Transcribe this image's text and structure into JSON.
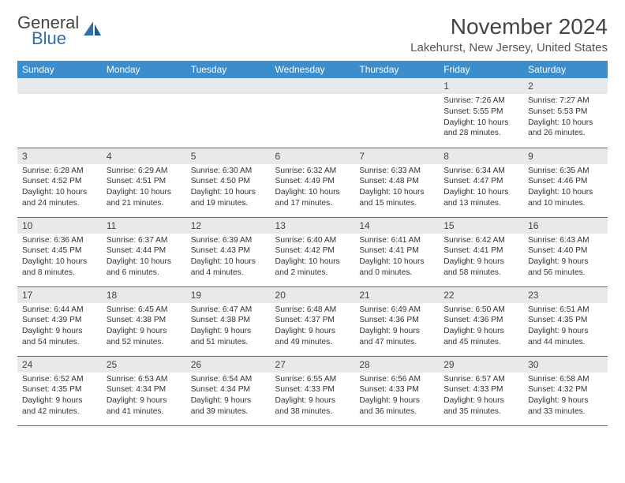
{
  "brand": {
    "word1": "General",
    "word2": "Blue",
    "word1_color": "#444444",
    "word2_color": "#2e6fb0"
  },
  "title": "November 2024",
  "location": "Lakehurst, New Jersey, United States",
  "header_bg": "#3b8dcb",
  "header_text_color": "#ffffff",
  "daynum_bg": "#e8e9ea",
  "border_color": "#3b6ea0",
  "background_color": "#ffffff",
  "day_names": [
    "Sunday",
    "Monday",
    "Tuesday",
    "Wednesday",
    "Thursday",
    "Friday",
    "Saturday"
  ],
  "weeks": [
    [
      null,
      null,
      null,
      null,
      null,
      {
        "n": "1",
        "sunrise": "7:26 AM",
        "sunset": "5:55 PM",
        "daylight": "10 hours and 28 minutes."
      },
      {
        "n": "2",
        "sunrise": "7:27 AM",
        "sunset": "5:53 PM",
        "daylight": "10 hours and 26 minutes."
      }
    ],
    [
      {
        "n": "3",
        "sunrise": "6:28 AM",
        "sunset": "4:52 PM",
        "daylight": "10 hours and 24 minutes."
      },
      {
        "n": "4",
        "sunrise": "6:29 AM",
        "sunset": "4:51 PM",
        "daylight": "10 hours and 21 minutes."
      },
      {
        "n": "5",
        "sunrise": "6:30 AM",
        "sunset": "4:50 PM",
        "daylight": "10 hours and 19 minutes."
      },
      {
        "n": "6",
        "sunrise": "6:32 AM",
        "sunset": "4:49 PM",
        "daylight": "10 hours and 17 minutes."
      },
      {
        "n": "7",
        "sunrise": "6:33 AM",
        "sunset": "4:48 PM",
        "daylight": "10 hours and 15 minutes."
      },
      {
        "n": "8",
        "sunrise": "6:34 AM",
        "sunset": "4:47 PM",
        "daylight": "10 hours and 13 minutes."
      },
      {
        "n": "9",
        "sunrise": "6:35 AM",
        "sunset": "4:46 PM",
        "daylight": "10 hours and 10 minutes."
      }
    ],
    [
      {
        "n": "10",
        "sunrise": "6:36 AM",
        "sunset": "4:45 PM",
        "daylight": "10 hours and 8 minutes."
      },
      {
        "n": "11",
        "sunrise": "6:37 AM",
        "sunset": "4:44 PM",
        "daylight": "10 hours and 6 minutes."
      },
      {
        "n": "12",
        "sunrise": "6:39 AM",
        "sunset": "4:43 PM",
        "daylight": "10 hours and 4 minutes."
      },
      {
        "n": "13",
        "sunrise": "6:40 AM",
        "sunset": "4:42 PM",
        "daylight": "10 hours and 2 minutes."
      },
      {
        "n": "14",
        "sunrise": "6:41 AM",
        "sunset": "4:41 PM",
        "daylight": "10 hours and 0 minutes."
      },
      {
        "n": "15",
        "sunrise": "6:42 AM",
        "sunset": "4:41 PM",
        "daylight": "9 hours and 58 minutes."
      },
      {
        "n": "16",
        "sunrise": "6:43 AM",
        "sunset": "4:40 PM",
        "daylight": "9 hours and 56 minutes."
      }
    ],
    [
      {
        "n": "17",
        "sunrise": "6:44 AM",
        "sunset": "4:39 PM",
        "daylight": "9 hours and 54 minutes."
      },
      {
        "n": "18",
        "sunrise": "6:45 AM",
        "sunset": "4:38 PM",
        "daylight": "9 hours and 52 minutes."
      },
      {
        "n": "19",
        "sunrise": "6:47 AM",
        "sunset": "4:38 PM",
        "daylight": "9 hours and 51 minutes."
      },
      {
        "n": "20",
        "sunrise": "6:48 AM",
        "sunset": "4:37 PM",
        "daylight": "9 hours and 49 minutes."
      },
      {
        "n": "21",
        "sunrise": "6:49 AM",
        "sunset": "4:36 PM",
        "daylight": "9 hours and 47 minutes."
      },
      {
        "n": "22",
        "sunrise": "6:50 AM",
        "sunset": "4:36 PM",
        "daylight": "9 hours and 45 minutes."
      },
      {
        "n": "23",
        "sunrise": "6:51 AM",
        "sunset": "4:35 PM",
        "daylight": "9 hours and 44 minutes."
      }
    ],
    [
      {
        "n": "24",
        "sunrise": "6:52 AM",
        "sunset": "4:35 PM",
        "daylight": "9 hours and 42 minutes."
      },
      {
        "n": "25",
        "sunrise": "6:53 AM",
        "sunset": "4:34 PM",
        "daylight": "9 hours and 41 minutes."
      },
      {
        "n": "26",
        "sunrise": "6:54 AM",
        "sunset": "4:34 PM",
        "daylight": "9 hours and 39 minutes."
      },
      {
        "n": "27",
        "sunrise": "6:55 AM",
        "sunset": "4:33 PM",
        "daylight": "9 hours and 38 minutes."
      },
      {
        "n": "28",
        "sunrise": "6:56 AM",
        "sunset": "4:33 PM",
        "daylight": "9 hours and 36 minutes."
      },
      {
        "n": "29",
        "sunrise": "6:57 AM",
        "sunset": "4:33 PM",
        "daylight": "9 hours and 35 minutes."
      },
      {
        "n": "30",
        "sunrise": "6:58 AM",
        "sunset": "4:32 PM",
        "daylight": "9 hours and 33 minutes."
      }
    ]
  ],
  "labels": {
    "sunrise": "Sunrise:",
    "sunset": "Sunset:",
    "daylight": "Daylight:"
  }
}
